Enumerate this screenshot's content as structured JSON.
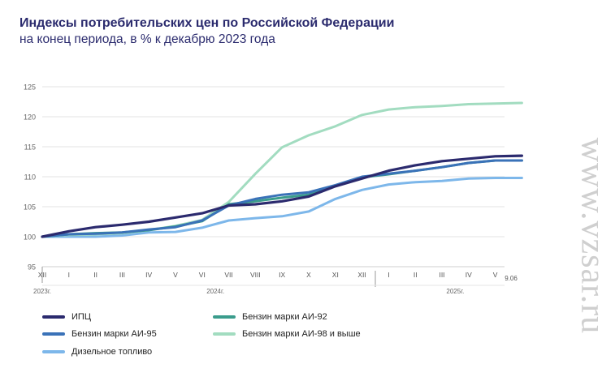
{
  "chart_title": "Индексы потребительских цен по Российской Федерации",
  "chart_subtitle": "на конец периода, в % к декабрю 2023 года",
  "watermark": "www.vzsar.ru",
  "chart_data": {
    "type": "line",
    "title": "Индексы потребительских цен по Российской Федерации",
    "subtitle": "на конец периода, в % к декабрю 2023 года",
    "ylim": [
      95,
      125
    ],
    "yticks": [
      95,
      100,
      105,
      110,
      115,
      120,
      125
    ],
    "grid": true,
    "legend_position": "bottom",
    "categories": [
      "XII",
      "I",
      "II",
      "III",
      "IV",
      "V",
      "VI",
      "VII",
      "VIII",
      "IX",
      "X",
      "XI",
      "XII",
      "I",
      "II",
      "III",
      "IV",
      "V",
      "9.06"
    ],
    "year_labels": [
      {
        "label": "2023г.",
        "at": "XII"
      },
      {
        "label": "2024г.",
        "at": "VI-VII"
      },
      {
        "label": "2025г.",
        "at": "III-IV"
      }
    ],
    "series": [
      {
        "name": "ИПЦ",
        "color": "#2b2a6e",
        "values": [
          100,
          100.9,
          101.6,
          102.0,
          102.5,
          103.2,
          103.9,
          105.2,
          105.4,
          105.9,
          106.7,
          108.4,
          109.7,
          111.0,
          111.9,
          112.6,
          113.0,
          113.4,
          113.5
        ]
      },
      {
        "name": "Бензин марки АИ-92",
        "color": "#3a9c8c",
        "values": [
          100,
          100.4,
          100.6,
          100.7,
          101.1,
          101.7,
          102.6,
          105.4,
          105.9,
          106.5,
          107.0,
          108.5,
          109.9,
          110.4,
          111.0,
          111.6,
          112.3,
          112.7,
          112.7
        ]
      },
      {
        "name": "Бензин марки АИ-95",
        "color": "#3a72b8",
        "values": [
          100,
          100.4,
          100.5,
          100.7,
          101.2,
          101.6,
          102.7,
          105.2,
          106.3,
          107.0,
          107.4,
          108.6,
          110.0,
          110.5,
          111.0,
          111.6,
          112.3,
          112.7,
          112.7
        ]
      },
      {
        "name": "Бензин марки АИ-98 и выше",
        "color": "#a2dcc0",
        "values": [
          100,
          100.3,
          100.4,
          100.6,
          101.1,
          101.8,
          102.8,
          105.8,
          110.5,
          114.9,
          116.9,
          118.4,
          120.3,
          121.2,
          121.6,
          121.8,
          122.1,
          122.2,
          122.3
        ]
      },
      {
        "name": "Дизельное топливо",
        "color": "#7db7ea",
        "values": [
          100,
          100.0,
          100.0,
          100.2,
          100.7,
          100.8,
          101.5,
          102.7,
          103.1,
          103.4,
          104.2,
          106.3,
          107.8,
          108.7,
          109.1,
          109.3,
          109.7,
          109.8,
          109.8
        ]
      }
    ]
  }
}
